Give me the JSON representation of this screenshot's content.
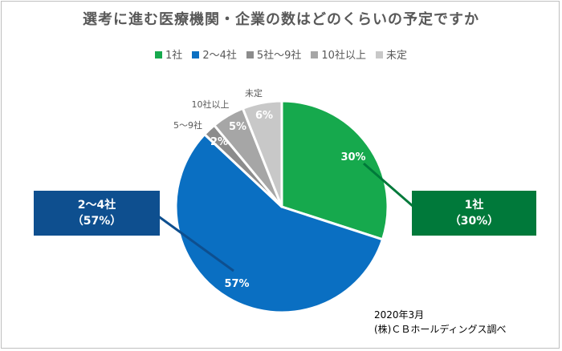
{
  "chart_data": {
    "type": "pie",
    "title": "選考に進む医療機関・企業の数はどのくらいの予定ですか",
    "legend_position": "top",
    "start_angle_deg": 0,
    "direction": "clockwise",
    "categories": [
      "1社",
      "2〜4社",
      "5社〜9社",
      "10社以上",
      "未定"
    ],
    "values": [
      30,
      57,
      2,
      5,
      6
    ],
    "value_labels": [
      "30%",
      "57%",
      "2%",
      "5%",
      "6%"
    ],
    "colors": [
      "#16a94d",
      "#0a6fc2",
      "#8c8c8c",
      "#a6a6a6",
      "#c8c8c8"
    ],
    "outside_labels": [
      "",
      "",
      "5〜9社",
      "10社以上",
      "未定"
    ],
    "callouts": {
      "left": {
        "line1": "2〜4社",
        "line2": "（57%）",
        "color": "#0e4f8f"
      },
      "right": {
        "line1": "1社",
        "line2": "（30%）",
        "color": "#00793a"
      }
    }
  },
  "source": {
    "date": "2020年3月",
    "org": "(株)ＣＢホールディングス調べ"
  }
}
